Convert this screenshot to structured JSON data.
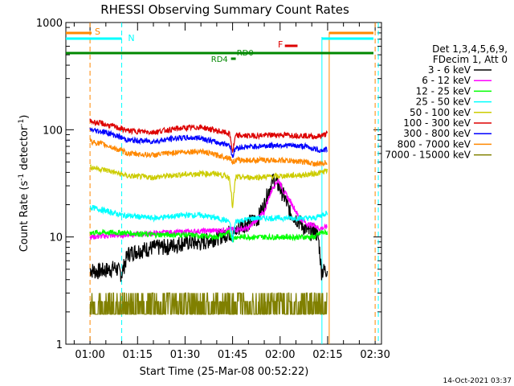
{
  "chart_data": {
    "type": "line",
    "title": "RHESSI Observing Summary Count Rates",
    "xlabel": "Start Time (25-Mar-08 00:52:22)",
    "ylabel": "Count Rate (s⁻¹ detector⁻¹)",
    "ylabel_parts": [
      "Count Rate (s",
      "-1",
      " detector",
      "-1",
      ")"
    ],
    "ylim": [
      1,
      1000
    ],
    "y_scale": "log",
    "xlim_minutes": [
      52.37,
      152.0
    ],
    "x_ticks": [
      {
        "label": "01:00",
        "minute": 60
      },
      {
        "label": "01:15",
        "minute": 75
      },
      {
        "label": "01:30",
        "minute": 90
      },
      {
        "label": "01:45",
        "minute": 105
      },
      {
        "label": "02:00",
        "minute": 120
      },
      {
        "label": "02:15",
        "minute": 135
      },
      {
        "label": "02:30",
        "minute": 150
      }
    ],
    "y_ticks": [
      {
        "label": "1",
        "value": 1
      },
      {
        "label": "10",
        "value": 10
      },
      {
        "label": "100",
        "value": 100
      },
      {
        "label": "1000",
        "value": 1000
      }
    ],
    "legend_header": [
      "Det 1,3,4,5,6,9,",
      "FDecim 1, Att 0"
    ],
    "series": [
      {
        "name": "3 - 6 keV",
        "color": "#000000",
        "points": [
          [
            60,
            5
          ],
          [
            62,
            4.8
          ],
          [
            66,
            5
          ],
          [
            68,
            5.2
          ],
          [
            70,
            4.5
          ],
          [
            72,
            7
          ],
          [
            75,
            7.5
          ],
          [
            80,
            8
          ],
          [
            85,
            8.2
          ],
          [
            90,
            9
          ],
          [
            95,
            8.8
          ],
          [
            100,
            10
          ],
          [
            104,
            11
          ],
          [
            105,
            10.5
          ],
          [
            108,
            13
          ],
          [
            111,
            14
          ],
          [
            113,
            15
          ],
          [
            115,
            20
          ],
          [
            117,
            30
          ],
          [
            118,
            35
          ],
          [
            119.5,
            30
          ],
          [
            121,
            25
          ],
          [
            123,
            17
          ],
          [
            126,
            14
          ],
          [
            129,
            11
          ],
          [
            131,
            11.5
          ],
          [
            132,
            10
          ],
          [
            133,
            4.8
          ],
          [
            135,
            5
          ]
        ]
      },
      {
        "name": "6 - 12 keV",
        "color": "#ff00ff",
        "points": [
          [
            60,
            10
          ],
          [
            72,
            10.5
          ],
          [
            85,
            11
          ],
          [
            100,
            11.5
          ],
          [
            110,
            12
          ],
          [
            115,
            17
          ],
          [
            118,
            30
          ],
          [
            119.5,
            34
          ],
          [
            121,
            27
          ],
          [
            123,
            22
          ],
          [
            126,
            15
          ],
          [
            129,
            13
          ],
          [
            131,
            13
          ],
          [
            132,
            12
          ],
          [
            133,
            12
          ],
          [
            135,
            12.5
          ]
        ]
      },
      {
        "name": "12 - 25 keV",
        "color": "#00ff00",
        "points": [
          [
            60,
            11
          ],
          [
            70,
            11
          ],
          [
            80,
            10.5
          ],
          [
            90,
            10.5
          ],
          [
            100,
            10
          ],
          [
            104,
            11
          ],
          [
            105,
            9.5
          ],
          [
            106,
            10
          ],
          [
            112,
            10
          ],
          [
            120,
            10
          ],
          [
            128,
            10
          ],
          [
            131,
            10
          ],
          [
            133,
            11
          ],
          [
            135,
            11
          ]
        ]
      },
      {
        "name": "25 - 50 keV",
        "color": "#00ffff",
        "points": [
          [
            60,
            19
          ],
          [
            70,
            16
          ],
          [
            80,
            15
          ],
          [
            90,
            16
          ],
          [
            95,
            16
          ],
          [
            100,
            15
          ],
          [
            104,
            14
          ],
          [
            105,
            9
          ],
          [
            106,
            14
          ],
          [
            112,
            15
          ],
          [
            120,
            15
          ],
          [
            128,
            15
          ],
          [
            131,
            15
          ],
          [
            133,
            16
          ],
          [
            135,
            17
          ]
        ]
      },
      {
        "name": "50 - 100 keV",
        "color": "#cccc00",
        "points": [
          [
            60,
            45
          ],
          [
            65,
            42
          ],
          [
            72,
            37
          ],
          [
            80,
            36
          ],
          [
            88,
            38
          ],
          [
            95,
            39
          ],
          [
            100,
            39
          ],
          [
            104,
            36
          ],
          [
            105,
            18
          ],
          [
            106,
            36
          ],
          [
            112,
            36
          ],
          [
            120,
            37
          ],
          [
            128,
            38
          ],
          [
            131,
            39
          ],
          [
            133,
            40
          ],
          [
            135,
            42
          ]
        ]
      },
      {
        "name": "100 - 300 keV",
        "color": "#dd0000",
        "points": [
          [
            60,
            120
          ],
          [
            65,
            112
          ],
          [
            72,
            98
          ],
          [
            80,
            95
          ],
          [
            88,
            103
          ],
          [
            95,
            106
          ],
          [
            100,
            98
          ],
          [
            104,
            92
          ],
          [
            105,
            62
          ],
          [
            106,
            88
          ],
          [
            112,
            88
          ],
          [
            120,
            90
          ],
          [
            128,
            88
          ],
          [
            131,
            86
          ],
          [
            133,
            88
          ],
          [
            135,
            92
          ]
        ]
      },
      {
        "name": "300 - 800 keV",
        "color": "#0000ff",
        "points": [
          [
            60,
            100
          ],
          [
            65,
            95
          ],
          [
            72,
            80
          ],
          [
            80,
            78
          ],
          [
            88,
            84
          ],
          [
            95,
            84
          ],
          [
            100,
            76
          ],
          [
            104,
            73
          ],
          [
            105,
            56
          ],
          [
            106,
            68
          ],
          [
            112,
            70
          ],
          [
            120,
            72
          ],
          [
            128,
            70
          ],
          [
            131,
            66
          ],
          [
            133,
            64
          ],
          [
            135,
            66
          ]
        ]
      },
      {
        "name": "800 - 7000 keV",
        "color": "#ff8800",
        "points": [
          [
            60,
            78
          ],
          [
            65,
            72
          ],
          [
            72,
            60
          ],
          [
            80,
            58
          ],
          [
            88,
            62
          ],
          [
            95,
            63
          ],
          [
            100,
            58
          ],
          [
            104,
            55
          ],
          [
            105,
            50
          ],
          [
            106,
            52
          ],
          [
            112,
            52
          ],
          [
            120,
            52
          ],
          [
            128,
            50
          ],
          [
            131,
            48
          ],
          [
            133,
            48
          ],
          [
            135,
            50
          ]
        ]
      },
      {
        "name": "7000 - 15000 keV",
        "color": "#808000",
        "points": [
          [
            60,
            2
          ],
          [
            70,
            2
          ],
          [
            80,
            2.5
          ],
          [
            90,
            2.5
          ],
          [
            100,
            2.5
          ],
          [
            110,
            2.5
          ],
          [
            120,
            2
          ],
          [
            130,
            2
          ],
          [
            135,
            2.5
          ]
        ]
      }
    ],
    "markers": {
      "S": {
        "label": "S",
        "color": "#ff8800"
      },
      "N": {
        "label": "N",
        "color": "#00ffff"
      },
      "F": {
        "label": "F",
        "color": "#dd0000"
      },
      "RD4": {
        "label": "RD4",
        "color": "#008800"
      },
      "RD0": {
        "label": "RD0",
        "color": "#008800"
      }
    },
    "footer_date": "14-Oct-2021 03:37"
  }
}
